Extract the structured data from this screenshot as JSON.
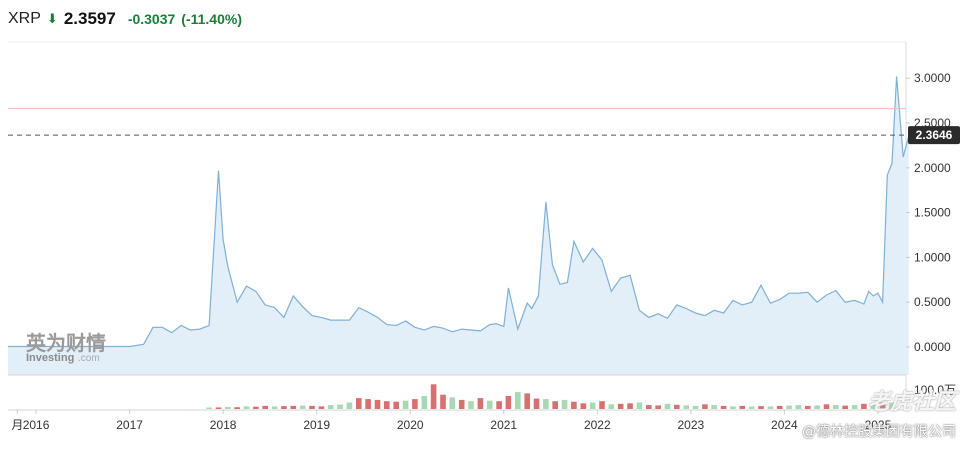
{
  "header": {
    "symbol": "XRP",
    "price": "2.3597",
    "change": "-0.3037",
    "change_pct": "(-11.40%)",
    "direction_icon": "down-arrow-icon",
    "color_down": "#1a7f37"
  },
  "watermark": {
    "brand_cn": "英为财情",
    "brand_en": "Investing",
    "brand_suffix": ".com",
    "community": "老虎社区",
    "company": "@德林控股集团有限公司"
  },
  "chart_data": {
    "type": "area",
    "title": "",
    "xlabel": "",
    "ylabel": "",
    "ylim": [
      -0.3,
      3.3
    ],
    "yticks": [
      3.0,
      2.5,
      2.0,
      1.5,
      1.0,
      0.5,
      0.0
    ],
    "ytick_labels": [
      "3.0000",
      "2.5000",
      "2.0000",
      "1.5000",
      "1.0000",
      "0.5000",
      "0.0000"
    ],
    "xticks": [
      2015.8,
      2016,
      2017,
      2018,
      2019,
      2020,
      2021,
      2022,
      2023,
      2024,
      2025
    ],
    "xtick_labels": [
      "月",
      "2016",
      "2017",
      "2018",
      "2019",
      "2020",
      "2021",
      "2022",
      "2023",
      "2024",
      "2025"
    ],
    "xlim": [
      2015.7,
      2025.3
    ],
    "current_price": 2.3646,
    "current_price_label": "2.3646",
    "reference_line": 2.66,
    "volume_label": "100.0万",
    "colors": {
      "line": "#7fb0d6",
      "fill": "#e2eef8",
      "ref_line": "#f3bcbc",
      "label_bg": "#2b2b2b",
      "vol_up": "#a9d8b5",
      "vol_down": "#d97070"
    },
    "series": [
      {
        "x": [
          2015.7,
          2016.0,
          2016.5,
          2017.0,
          2017.15,
          2017.25,
          2017.35,
          2017.45,
          2017.55,
          2017.65,
          2017.75,
          2017.85,
          2017.95,
          2018.0,
          2018.05,
          2018.15,
          2018.25,
          2018.35,
          2018.45,
          2018.55,
          2018.65,
          2018.75,
          2018.85,
          2018.95,
          2019.05,
          2019.15,
          2019.25,
          2019.35,
          2019.45,
          2019.55,
          2019.65,
          2019.75,
          2019.85,
          2019.95,
          2020.05,
          2020.15,
          2020.25,
          2020.35,
          2020.45,
          2020.55,
          2020.65,
          2020.75,
          2020.85,
          2020.92,
          2021.0,
          2021.05,
          2021.15,
          2021.25,
          2021.3,
          2021.37,
          2021.45,
          2021.52,
          2021.6,
          2021.68,
          2021.75,
          2021.85,
          2021.95,
          2022.05,
          2022.15,
          2022.25,
          2022.35,
          2022.45,
          2022.55,
          2022.65,
          2022.75,
          2022.85,
          2022.95,
          2023.05,
          2023.15,
          2023.25,
          2023.35,
          2023.45,
          2023.55,
          2023.65,
          2023.75,
          2023.85,
          2023.95,
          2024.05,
          2024.15,
          2024.25,
          2024.35,
          2024.45,
          2024.55,
          2024.65,
          2024.75,
          2024.85,
          2024.9,
          2024.95,
          2025.0,
          2025.05,
          2025.1,
          2025.15
        ],
        "y": [
          0.006,
          0.006,
          0.006,
          0.006,
          0.03,
          0.22,
          0.22,
          0.16,
          0.24,
          0.19,
          0.2,
          0.24,
          1.97,
          1.2,
          0.9,
          0.5,
          0.68,
          0.62,
          0.47,
          0.44,
          0.33,
          0.57,
          0.45,
          0.35,
          0.33,
          0.3,
          0.3,
          0.3,
          0.44,
          0.39,
          0.33,
          0.25,
          0.24,
          0.29,
          0.22,
          0.19,
          0.23,
          0.21,
          0.17,
          0.2,
          0.19,
          0.18,
          0.25,
          0.26,
          0.23,
          0.66,
          0.2,
          0.49,
          0.43,
          0.57,
          1.62,
          0.92,
          0.7,
          0.72,
          1.18,
          0.95,
          1.1,
          0.97,
          0.62,
          0.77,
          0.8,
          0.41,
          0.33,
          0.37,
          0.32,
          0.47,
          0.43,
          0.38,
          0.35,
          0.41,
          0.38,
          0.52,
          0.47,
          0.5,
          0.69,
          0.49,
          0.53,
          0.6,
          0.6,
          0.61,
          0.5,
          0.58,
          0.63,
          0.5,
          0.52,
          0.48,
          0.62,
          0.57,
          0.6,
          0.5,
          1.92,
          2.05
        ]
      }
    ],
    "tail_points": {
      "x": [
        2025.15,
        2025.2,
        2025.27,
        2025.33
      ],
      "y": [
        2.05,
        3.02,
        2.12,
        2.36
      ]
    },
    "volume": {
      "x": [
        2017.85,
        2017.95,
        2018.05,
        2018.15,
        2018.25,
        2018.35,
        2018.45,
        2018.55,
        2018.65,
        2018.75,
        2018.85,
        2018.95,
        2019.05,
        2019.15,
        2019.25,
        2019.35,
        2019.45,
        2019.55,
        2019.65,
        2019.75,
        2019.85,
        2019.95,
        2020.05,
        2020.15,
        2020.25,
        2020.35,
        2020.45,
        2020.55,
        2020.65,
        2020.75,
        2020.85,
        2020.95,
        2021.05,
        2021.15,
        2021.25,
        2021.35,
        2021.45,
        2021.55,
        2021.65,
        2021.75,
        2021.85,
        2021.95,
        2022.05,
        2022.15,
        2022.25,
        2022.35,
        2022.45,
        2022.55,
        2022.65,
        2022.75,
        2022.85,
        2022.95,
        2023.05,
        2023.15,
        2023.25,
        2023.35,
        2023.45,
        2023.55,
        2023.65,
        2023.75,
        2023.85,
        2023.95,
        2024.05,
        2024.15,
        2024.25,
        2024.35,
        2024.45,
        2024.55,
        2024.65,
        2024.75,
        2024.85,
        2024.95,
        2025.05,
        2025.15
      ],
      "v": [
        0.05,
        0.06,
        0.08,
        0.07,
        0.1,
        0.09,
        0.12,
        0.1,
        0.11,
        0.12,
        0.13,
        0.12,
        0.1,
        0.15,
        0.17,
        0.25,
        0.42,
        0.38,
        0.35,
        0.3,
        0.28,
        0.32,
        0.38,
        0.5,
        0.95,
        0.55,
        0.45,
        0.35,
        0.3,
        0.42,
        0.32,
        0.3,
        0.5,
        0.65,
        0.6,
        0.4,
        0.38,
        0.3,
        0.35,
        0.28,
        0.22,
        0.25,
        0.3,
        0.18,
        0.2,
        0.22,
        0.25,
        0.15,
        0.14,
        0.2,
        0.16,
        0.14,
        0.12,
        0.18,
        0.15,
        0.12,
        0.1,
        0.12,
        0.1,
        0.11,
        0.1,
        0.12,
        0.13,
        0.15,
        0.12,
        0.14,
        0.18,
        0.15,
        0.13,
        0.15,
        0.2,
        0.22,
        0.25,
        0.25
      ],
      "up": [
        1,
        0,
        1,
        0,
        1,
        0,
        0,
        1,
        0,
        0,
        1,
        0,
        0,
        1,
        1,
        1,
        0,
        0,
        0,
        0,
        0,
        1,
        0,
        1,
        0,
        0,
        1,
        0,
        1,
        0,
        1,
        0,
        0,
        1,
        0,
        0,
        1,
        0,
        1,
        0,
        0,
        1,
        0,
        1,
        0,
        0,
        1,
        0,
        0,
        1,
        0,
        1,
        1,
        0,
        1,
        0,
        1,
        0,
        1,
        0,
        1,
        0,
        1,
        1,
        0,
        1,
        0,
        1,
        0,
        1,
        0,
        1,
        0,
        1
      ]
    }
  }
}
